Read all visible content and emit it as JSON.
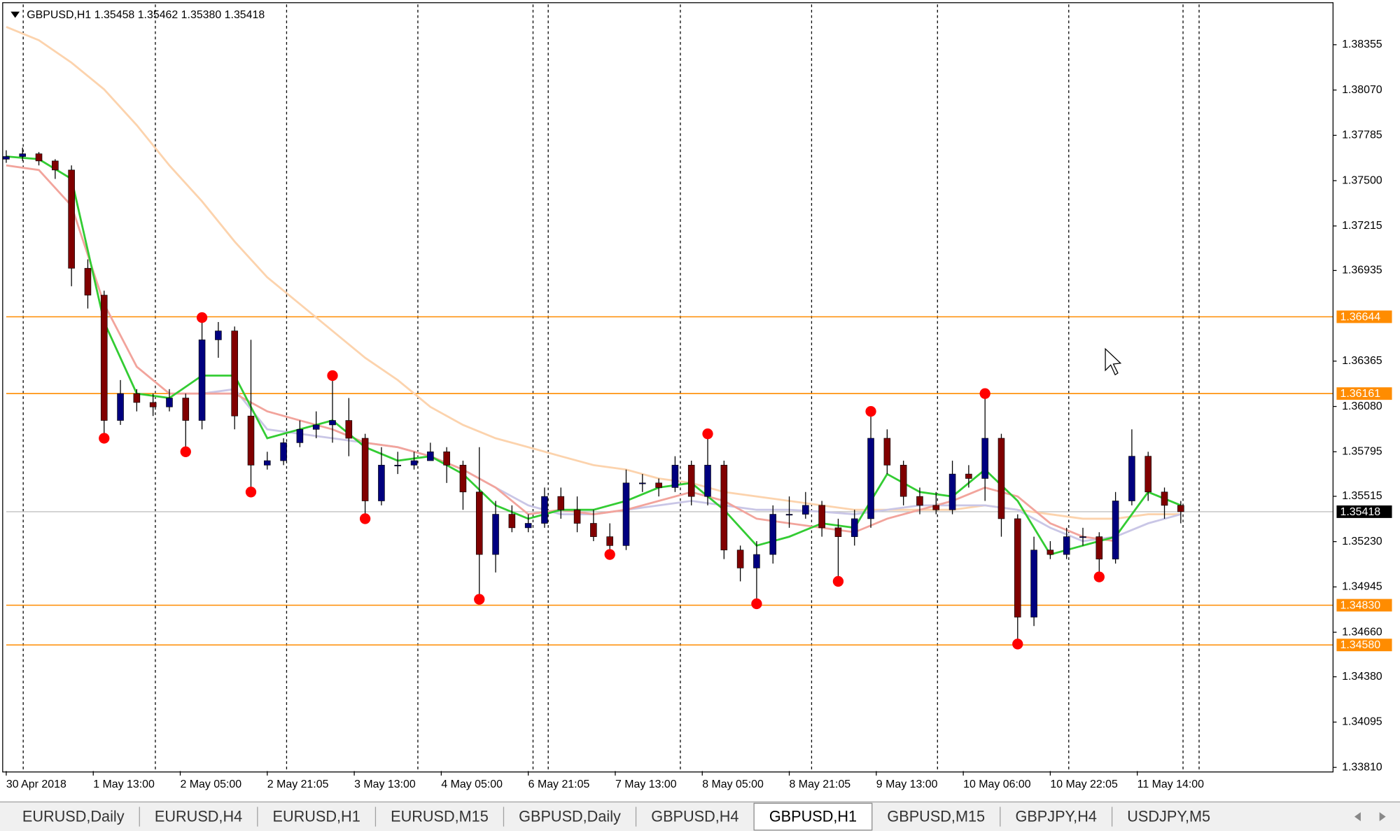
{
  "chart_data": {
    "type": "candlestick",
    "title": "GBPUSD,H1 1.35458 1.35462 1.35380 1.35418",
    "xlim": [
      0,
      244
    ],
    "ylim": [
      1.33787,
      1.38608
    ],
    "xticks": [
      {
        "value": 0,
        "label": "30 Apr 2018"
      },
      {
        "value": 16,
        "label": "1 May 13:00"
      },
      {
        "value": 32,
        "label": "2 May 05:00"
      },
      {
        "value": 48,
        "label": "2 May 21:05"
      },
      {
        "value": 64,
        "label": "3 May 13:00"
      },
      {
        "value": 80,
        "label": "4 May 05:00"
      },
      {
        "value": 96,
        "label": "6 May 21:05"
      },
      {
        "value": 112,
        "label": "7 May 13:00"
      },
      {
        "value": 128,
        "label": "8 May 05:00"
      },
      {
        "value": 144,
        "label": "8 May 21:05"
      },
      {
        "value": 160,
        "label": "9 May 13:00"
      },
      {
        "value": 176,
        "label": "10 May 06:00"
      },
      {
        "value": 192,
        "label": "10 May 22:05"
      },
      {
        "value": 208,
        "label": "11 May 14:00"
      }
    ],
    "yticks": [
      1.38355,
      {
        "value": 1.3807,
        "label": "1.38070"
      },
      1.37785,
      {
        "value": 1.375,
        "label": "1.37500"
      },
      1.37215,
      1.36935,
      1.36365,
      {
        "value": 1.3608,
        "label": "1.36080"
      },
      1.35795,
      1.35515,
      {
        "value": 1.3523,
        "label": "1.35230"
      },
      1.34945,
      {
        "value": 1.3466,
        "label": "1.34660"
      },
      {
        "value": 1.3438,
        "label": "1.34380"
      },
      1.34095,
      {
        "value": 1.3381,
        "label": "1.33810"
      }
    ],
    "up_color": "#00007f",
    "down_color": "#800000",
    "x": [
      0,
      3,
      6,
      9,
      12,
      15,
      18,
      21,
      24,
      27,
      30,
      33,
      36,
      39,
      42,
      45,
      48,
      51,
      54,
      57,
      60,
      63,
      66,
      69,
      72,
      75,
      78,
      81,
      84,
      87,
      90,
      93,
      96,
      99,
      102,
      105,
      108,
      111,
      114,
      117,
      120,
      123,
      126,
      129,
      132,
      135,
      138,
      141,
      144,
      147,
      150,
      153,
      156,
      159,
      162,
      165,
      168,
      171,
      174,
      177,
      180,
      183,
      186,
      189,
      192,
      195,
      198,
      201,
      204,
      207,
      210,
      213,
      216
    ],
    "open": [
      1.37635,
      1.37652,
      1.37669,
      1.37624,
      1.37567,
      1.36949,
      1.3678,
      1.35992,
      1.36161,
      1.36105,
      1.36077,
      1.36133,
      1.35992,
      1.36499,
      1.36555,
      1.3602,
      1.35711,
      1.35739,
      1.35852,
      1.35936,
      1.35964,
      1.35992,
      1.3588,
      1.35486,
      1.35711,
      1.35711,
      1.35739,
      1.35795,
      1.35711,
      1.35542,
      1.35149,
      1.35402,
      1.35317,
      1.35345,
      1.35514,
      1.3543,
      1.35345,
      1.35261,
      1.35205,
      1.35599,
      1.35599,
      1.3557,
      1.35711,
      1.35514,
      1.35711,
      1.35177,
      1.35064,
      1.35149,
      1.35402,
      1.35402,
      1.35458,
      1.35317,
      1.35261,
      1.35374,
      1.3588,
      1.35711,
      1.35514,
      1.35458,
      1.3543,
      1.35655,
      1.35627,
      1.3588,
      1.35374,
      1.34755,
      1.35177,
      1.35149,
      1.35261,
      1.35261,
      1.3512,
      1.35486,
      1.35767,
      1.35542,
      1.35458
    ],
    "high": [
      1.37691,
      1.37708,
      1.3768,
      1.37635,
      1.37596,
      1.37005,
      1.36808,
      1.36246,
      1.36189,
      1.36161,
      1.36189,
      1.36161,
      1.36639,
      1.36611,
      1.36583,
      1.36499,
      1.35795,
      1.3588,
      1.35992,
      1.36049,
      1.36274,
      1.36133,
      1.35908,
      1.35824,
      1.35795,
      1.35795,
      1.35852,
      1.35824,
      1.35739,
      1.35824,
      1.35486,
      1.35458,
      1.35402,
      1.3557,
      1.3557,
      1.35514,
      1.3543,
      1.35345,
      1.35683,
      1.35655,
      1.35627,
      1.35767,
      1.35739,
      1.35908,
      1.35739,
      1.35205,
      1.35233,
      1.35458,
      1.35514,
      1.35542,
      1.35486,
      1.35374,
      1.3543,
      1.36049,
      1.35936,
      1.35739,
      1.3557,
      1.35542,
      1.35739,
      1.35711,
      1.36161,
      1.35908,
      1.35402,
      1.35261,
      1.35233,
      1.35317,
      1.35317,
      1.35289,
      1.35542,
      1.35936,
      1.35795,
      1.3557,
      1.35486
    ],
    "low": [
      1.37612,
      1.37624,
      1.37596,
      1.37511,
      1.36836,
      1.36696,
      1.3588,
      1.35964,
      1.36049,
      1.3602,
      1.36049,
      1.35795,
      1.35936,
      1.36386,
      1.35936,
      1.35542,
      1.35683,
      1.35711,
      1.35824,
      1.3588,
      1.35852,
      1.35767,
      1.35374,
      1.35458,
      1.35655,
      1.35683,
      1.35739,
      1.35599,
      1.3543,
      1.34867,
      1.35036,
      1.35289,
      1.35289,
      1.35317,
      1.35374,
      1.35289,
      1.35233,
      1.35149,
      1.35177,
      1.35542,
      1.35514,
      1.35542,
      1.35458,
      1.35458,
      1.3512,
      1.3498,
      1.34839,
      1.35092,
      1.35317,
      1.35374,
      1.35261,
      1.3498,
      1.35205,
      1.35317,
      1.35655,
      1.35458,
      1.35402,
      1.35402,
      1.35402,
      1.3557,
      1.35486,
      1.35261,
      1.34586,
      1.34699,
      1.3512,
      1.3512,
      1.35205,
      1.35008,
      1.35092,
      1.35458,
      1.35486,
      1.35374,
      1.35345
    ],
    "close": [
      1.37652,
      1.37669,
      1.37624,
      1.37567,
      1.36949,
      1.3678,
      1.35992,
      1.36161,
      1.36105,
      1.36077,
      1.36133,
      1.35992,
      1.36499,
      1.36555,
      1.3602,
      1.35711,
      1.35739,
      1.35852,
      1.35936,
      1.35964,
      1.35992,
      1.3588,
      1.35486,
      1.35711,
      1.35711,
      1.35739,
      1.35795,
      1.35711,
      1.35542,
      1.35149,
      1.35402,
      1.35317,
      1.35345,
      1.35514,
      1.3543,
      1.35345,
      1.35261,
      1.35205,
      1.35599,
      1.35599,
      1.3557,
      1.35711,
      1.35514,
      1.35711,
      1.35177,
      1.35064,
      1.35149,
      1.35402,
      1.35402,
      1.35458,
      1.35317,
      1.35261,
      1.35374,
      1.3588,
      1.35711,
      1.35514,
      1.35458,
      1.3543,
      1.35655,
      1.35627,
      1.3588,
      1.35374,
      1.34755,
      1.35177,
      1.35149,
      1.35261,
      1.35261,
      1.3512,
      1.35486,
      1.35767,
      1.35542,
      1.35458,
      1.35418
    ],
    "lines": [
      {
        "color": "#fcd3ad",
        "x": [
          0,
          6,
          12,
          18,
          24,
          30,
          36,
          42,
          48,
          54,
          60,
          66,
          72,
          78,
          84,
          90,
          96,
          102,
          108,
          114,
          120,
          126,
          132,
          138,
          144,
          150,
          156,
          162,
          168,
          174,
          180,
          186,
          192,
          198,
          204,
          210,
          216
        ],
        "values": [
          1.38467,
          1.38383,
          1.38242,
          1.38074,
          1.37849,
          1.37596,
          1.3737,
          1.37117,
          1.36892,
          1.36724,
          1.36555,
          1.36386,
          1.36246,
          1.36077,
          1.35964,
          1.3588,
          1.35824,
          1.35767,
          1.35711,
          1.35683,
          1.35627,
          1.35599,
          1.35542,
          1.35514,
          1.35486,
          1.35458,
          1.3543,
          1.3543,
          1.3543,
          1.3543,
          1.35458,
          1.3543,
          1.35402,
          1.35374,
          1.35374,
          1.35402,
          1.35402
        ]
      },
      {
        "color": "#c9c6e6",
        "x": [
          36,
          42,
          48,
          54,
          60,
          66,
          72,
          78,
          84,
          90,
          96,
          102,
          108,
          114,
          120,
          126,
          132,
          138,
          144,
          150,
          156,
          162,
          168,
          174,
          180,
          186,
          192,
          198,
          204,
          210,
          216
        ],
        "values": [
          1.36161,
          1.36189,
          1.35936,
          1.35908,
          1.3588,
          1.35852,
          1.35824,
          1.35767,
          1.35683,
          1.3557,
          1.35458,
          1.35402,
          1.35402,
          1.3543,
          1.35458,
          1.35486,
          1.35458,
          1.3543,
          1.3543,
          1.35418,
          1.35402,
          1.3543,
          1.35458,
          1.35458,
          1.35458,
          1.3543,
          1.35317,
          1.35233,
          1.35261,
          1.35345,
          1.35402
        ]
      },
      {
        "color": "#f2a49c",
        "x": [
          0,
          6,
          12,
          18,
          24,
          30,
          36,
          42,
          48,
          54,
          60,
          66,
          72,
          78,
          84,
          90,
          96,
          102,
          108,
          114,
          120,
          126,
          132,
          138,
          144,
          150,
          156,
          162,
          168,
          174,
          180,
          186,
          192,
          198,
          204
        ],
        "values": [
          1.37596,
          1.37567,
          1.37342,
          1.36724,
          1.3633,
          1.36161,
          1.36161,
          1.36161,
          1.36049,
          1.35992,
          1.35936,
          1.35852,
          1.35824,
          1.35767,
          1.35683,
          1.3557,
          1.35402,
          1.3543,
          1.35402,
          1.3543,
          1.35486,
          1.35542,
          1.35486,
          1.35374,
          1.35345,
          1.35317,
          1.35289,
          1.35374,
          1.3543,
          1.35486,
          1.3557,
          1.35514,
          1.35345,
          1.35261,
          1.35233
        ]
      },
      {
        "color": "#33cc33",
        "x": [
          0,
          6,
          12,
          18,
          24,
          30,
          36,
          42,
          48,
          54,
          60,
          66,
          72,
          78,
          84,
          90,
          96,
          102,
          108,
          114,
          120,
          126,
          132,
          138,
          144,
          150,
          156,
          162,
          168,
          174,
          180,
          186,
          192,
          198,
          204,
          210,
          216
        ],
        "values": [
          1.37652,
          1.37635,
          1.37511,
          1.36611,
          1.36161,
          1.36133,
          1.36274,
          1.36274,
          1.3588,
          1.35936,
          1.35992,
          1.35824,
          1.35739,
          1.35767,
          1.35655,
          1.35458,
          1.35374,
          1.3543,
          1.3543,
          1.35486,
          1.3557,
          1.35599,
          1.3543,
          1.35205,
          1.35261,
          1.35345,
          1.35317,
          1.35655,
          1.35542,
          1.35514,
          1.35683,
          1.35486,
          1.35149,
          1.35205,
          1.35261,
          1.35542,
          1.35458
        ]
      }
    ],
    "markers": {
      "color": "#ff0000",
      "x": [
        18,
        33,
        36,
        45,
        60,
        66,
        87,
        111,
        129,
        138,
        153,
        159,
        180,
        186,
        201
      ],
      "values": [
        1.3588,
        1.35795,
        1.36639,
        1.35542,
        1.36274,
        1.35374,
        1.34867,
        1.35149,
        1.35908,
        1.34839,
        1.3498,
        1.36049,
        1.36161,
        1.34586,
        1.35008
      ]
    },
    "levels": [
      1.36644,
      1.36161,
      {
        "value": 1.3483,
        "label": "1.34830"
      },
      {
        "value": 1.3458,
        "label": "1.34580"
      }
    ],
    "level_color": "#ff8c00",
    "last_price": 1.35418
  },
  "tabs": [
    "EURUSD,Daily",
    "EURUSD,H4",
    "EURUSD,H1",
    "EURUSD,M15",
    "GBPUSD,Daily",
    "GBPUSD,H4",
    "GBPUSD,H1",
    "GBPUSD,M15",
    "GBPJPY,H4",
    "USDJPY,M5"
  ],
  "active_tab": 6
}
